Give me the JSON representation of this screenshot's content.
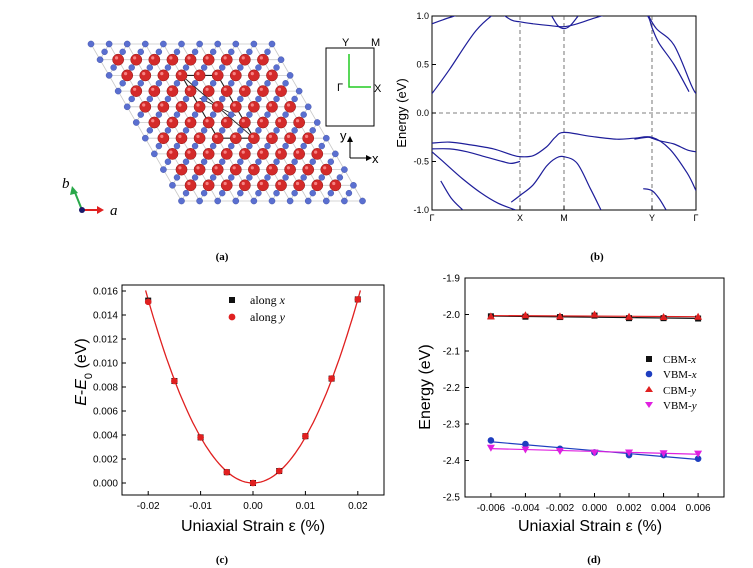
{
  "panel_a": {
    "caption": "(a)",
    "axis_b": "b",
    "axis_a": "a",
    "bz_labels": {
      "Y": "Y",
      "M": "M",
      "Gamma": "Γ",
      "X": "X"
    },
    "frame_y": "y",
    "frame_x": "x",
    "colors": {
      "large_atom": "#d42a2a",
      "small_atom": "#5a6fd0",
      "b_arrow": "#2aa84a",
      "a_arrow": "#e02020",
      "bz_path": "#22cc22"
    }
  },
  "chart_data": [
    {
      "id": "b",
      "type": "line",
      "caption": "(b)",
      "ylabel": "Energy (eV)",
      "xlabel": "",
      "ylim": [
        -1.0,
        1.0
      ],
      "yticks": [
        "1.0",
        "0.5",
        "0.0",
        "-0.5",
        "-1.0"
      ],
      "kpoints": [
        "Γ",
        "X",
        "M",
        "Y",
        "Γ"
      ],
      "kpoint_positions": [
        0,
        1,
        1.5,
        2.5,
        3
      ],
      "grid": "dashed lines at high-symmetry points and E = 0",
      "color": "#1e1e9a",
      "bands": [
        {
          "x": [
            0,
            0.2,
            0.5,
            0.75,
            0.9,
            1.0
          ],
          "y": [
            0.2,
            0.45,
            0.85,
            1.05,
            1.1,
            1.12
          ]
        },
        {
          "x": [
            0,
            0.12,
            0.22,
            0.32
          ],
          "y": [
            0.92,
            0.96,
            0.99,
            1.02
          ]
        },
        {
          "x": [
            0.75,
            0.9,
            1.0,
            1.15,
            1.35,
            1.5,
            1.65,
            1.85,
            2.05,
            2.3,
            2.5
          ],
          "y": [
            1.05,
            0.96,
            0.94,
            0.92,
            0.9,
            0.89,
            0.92,
            0.98,
            1.03,
            1.07,
            1.05
          ]
        },
        {
          "x": [
            1.36,
            1.43,
            1.5,
            1.57,
            1.66
          ],
          "y": [
            1.0,
            0.9,
            0.87,
            0.9,
            1.0
          ]
        },
        {
          "x": [
            2.45,
            2.55,
            2.75,
            2.95,
            3.0
          ],
          "y": [
            1.02,
            0.87,
            0.7,
            0.28,
            0.2
          ]
        },
        {
          "x": [
            2.3,
            2.45,
            2.5,
            2.58,
            2.75,
            2.92
          ],
          "y": [
            1.1,
            1.0,
            0.88,
            0.72,
            0.5,
            0.22
          ]
        },
        {
          "x": [
            0,
            0.2,
            0.45,
            0.7,
            0.9,
            1.0,
            1.15,
            1.3,
            1.4,
            1.5,
            1.8,
            2.1,
            2.3,
            2.5,
            2.7,
            2.9,
            3.0
          ],
          "y": [
            -0.31,
            -0.3,
            -0.33,
            -0.37,
            -0.43,
            -0.45,
            -0.44,
            -0.35,
            -0.25,
            -0.2,
            -0.24,
            -0.27,
            -0.26,
            -0.25,
            -0.37,
            -0.62,
            -0.8
          ]
        },
        {
          "x": [
            0,
            0.2,
            0.4,
            0.6,
            0.8,
            0.9,
            1.0
          ],
          "y": [
            -0.37,
            -0.37,
            -0.4,
            -0.45,
            -0.5,
            -0.52,
            -0.5
          ]
        },
        {
          "x": [
            0,
            0.15,
            0.35,
            0.55,
            0.75,
            0.95
          ],
          "y": [
            -0.4,
            -0.52,
            -0.68,
            -0.82,
            -0.93,
            -1.0
          ]
        },
        {
          "x": [
            0.9,
            1.0,
            1.15,
            1.3,
            1.4,
            1.5,
            1.65,
            1.8,
            1.92
          ],
          "y": [
            -0.92,
            -0.85,
            -0.74,
            -0.55,
            -0.47,
            -0.45,
            -0.52,
            -0.78,
            -1.0
          ]
        },
        {
          "x": [
            0.1,
            0.22,
            0.35
          ],
          "y": [
            -0.7,
            -0.88,
            -1.0
          ]
        },
        {
          "x": [
            2.3,
            2.45,
            2.5,
            2.6,
            2.75,
            2.9,
            3.0
          ],
          "y": [
            -0.27,
            -0.25,
            -0.26,
            -0.29,
            -0.32,
            -0.38,
            -0.4
          ]
        },
        {
          "x": [
            2.4,
            2.5,
            2.58,
            2.66
          ],
          "y": [
            -0.78,
            -0.8,
            -0.88,
            -1.0
          ]
        }
      ]
    },
    {
      "id": "c",
      "type": "scatter",
      "caption": "(c)",
      "xlabel": "Uniaxial Strain ε (%)",
      "ylabel": "E-E0 (eV)",
      "xlim": [
        -0.025,
        0.025
      ],
      "ylim": [
        -0.001,
        0.0165
      ],
      "xticks": [
        "-0.02",
        "-0.01",
        "0.00",
        "0.01",
        "0.02"
      ],
      "yticks": [
        "0.016",
        "0.014",
        "0.012",
        "0.010",
        "0.008",
        "0.006",
        "0.004",
        "0.002",
        "0.000"
      ],
      "legend_position": "top-right",
      "series": [
        {
          "name": "along x",
          "marker": "square",
          "color": "#111111",
          "x": [
            -0.02,
            -0.015,
            -0.01,
            -0.005,
            0.0,
            0.005,
            0.01,
            0.015,
            0.02
          ],
          "y": [
            0.0152,
            0.0085,
            0.0038,
            0.0009,
            0.0,
            0.001,
            0.0039,
            0.0087,
            0.0153
          ]
        },
        {
          "name": "along y",
          "marker": "circle",
          "color": "#e02020",
          "x": [
            -0.02,
            -0.015,
            -0.01,
            -0.005,
            0.0,
            0.005,
            0.01,
            0.015,
            0.02
          ],
          "y": [
            0.0151,
            0.0085,
            0.0038,
            0.0009,
            0.0,
            0.001,
            0.0039,
            0.0087,
            0.0153
          ]
        }
      ],
      "fit": {
        "color": "#e02020",
        "model": "quadratic",
        "coefficient": 38.2
      }
    },
    {
      "id": "d",
      "type": "scatter",
      "caption": "(d)",
      "xlabel": "Uniaxial Strain ε (%)",
      "ylabel": "Energy (eV)",
      "xlim": [
        -0.0075,
        0.0075
      ],
      "ylim": [
        -2.5,
        -1.9
      ],
      "xticks": [
        "-0.006",
        "-0.004",
        "-0.002",
        "0.000",
        "0.002",
        "0.004",
        "0.006"
      ],
      "yticks": [
        "-1.9",
        "-2.0",
        "-2.1",
        "-2.2",
        "-2.3",
        "-2.4",
        "-2.5"
      ],
      "legend_position": "right",
      "x": [
        -0.006,
        -0.004,
        -0.002,
        0.0,
        0.002,
        0.004,
        0.006
      ],
      "series": [
        {
          "name": "CBM-x",
          "marker": "square",
          "color": "#111111",
          "y": [
            -2.005,
            -2.006,
            -2.007,
            -2.003,
            -2.01,
            -2.01,
            -2.011
          ]
        },
        {
          "name": "VBM-x",
          "marker": "circle",
          "color": "#1e3ec0",
          "y": [
            -2.345,
            -2.355,
            -2.368,
            -2.378,
            -2.385,
            -2.385,
            -2.395
          ]
        },
        {
          "name": "CBM-y",
          "marker": "triangle-up",
          "color": "#e02020",
          "y": [
            -2.005,
            -2.002,
            -2.005,
            -2.0,
            -2.006,
            -2.007,
            -2.006
          ]
        },
        {
          "name": "VBM-y",
          "marker": "triangle-down",
          "color": "#e020e0",
          "y": [
            -2.365,
            -2.37,
            -2.374,
            -2.378,
            -2.378,
            -2.38,
            -2.381
          ]
        }
      ],
      "fits": [
        {
          "series": "CBM-x",
          "color": "#111111"
        },
        {
          "series": "CBM-y",
          "color": "#e02020"
        },
        {
          "series": "VBM-x",
          "color": "#1e3ec0"
        },
        {
          "series": "VBM-y",
          "color": "#e020e0"
        }
      ]
    }
  ]
}
